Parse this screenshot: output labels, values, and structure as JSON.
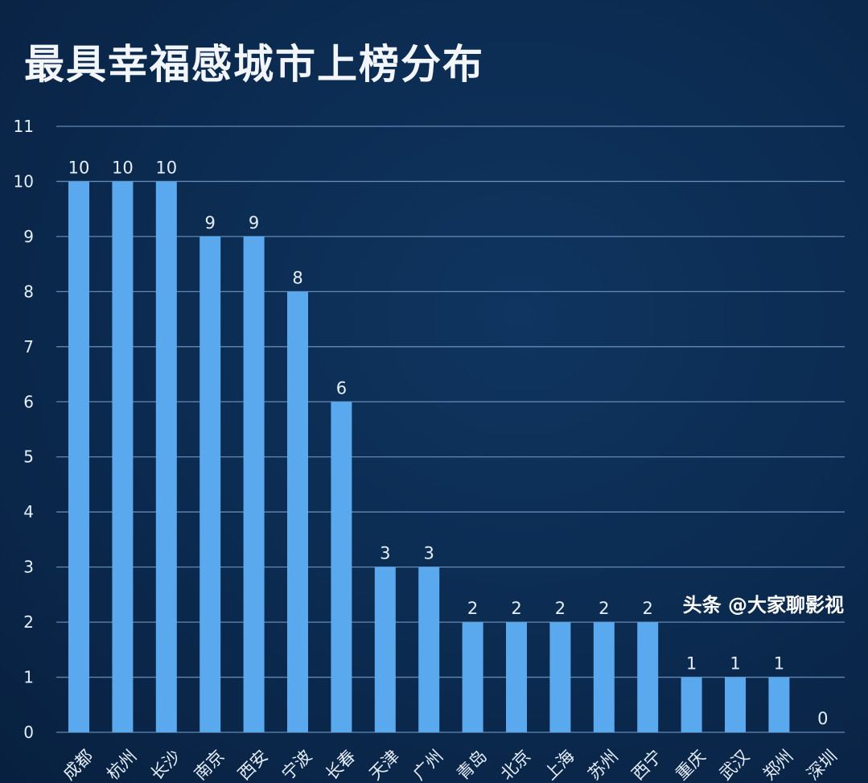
{
  "chart_data": {
    "type": "bar",
    "title": "最具幸福感城市上榜分布",
    "categories": [
      "成都",
      "杭州",
      "长沙",
      "南京",
      "西安",
      "宁波",
      "长春",
      "天津",
      "广州",
      "青岛",
      "北京",
      "上海",
      "苏州",
      "西宁",
      "重庆",
      "武汉",
      "郑州",
      "深圳"
    ],
    "values": [
      10,
      10,
      10,
      9,
      9,
      8,
      6,
      3,
      3,
      2,
      2,
      2,
      2,
      2,
      1,
      1,
      1,
      0
    ],
    "ylim": [
      0,
      11
    ],
    "yticks": [
      0,
      1,
      2,
      3,
      4,
      5,
      6,
      7,
      8,
      9,
      10,
      11
    ],
    "grid": true,
    "bar_color": "#5aa8ee",
    "xlabel": "",
    "ylabel": ""
  },
  "watermark": "头条 @大家聊影视"
}
